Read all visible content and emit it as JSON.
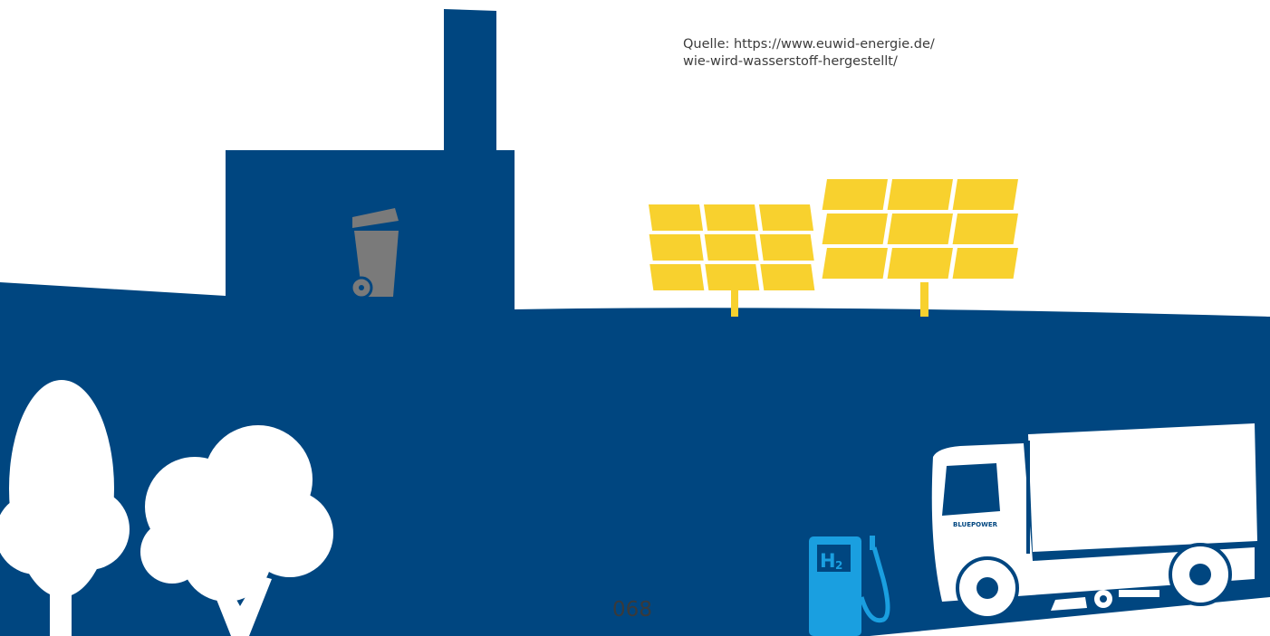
{
  "source": {
    "lines": [
      "Quelle: https://www.euwid-energie.de/",
      "wie-wird-wasserstoff-hergestellt/"
    ]
  },
  "page_number": "068",
  "pump_label": {
    "main": "H",
    "sub": "2"
  },
  "truck_brand": "BLUEPOWER"
}
